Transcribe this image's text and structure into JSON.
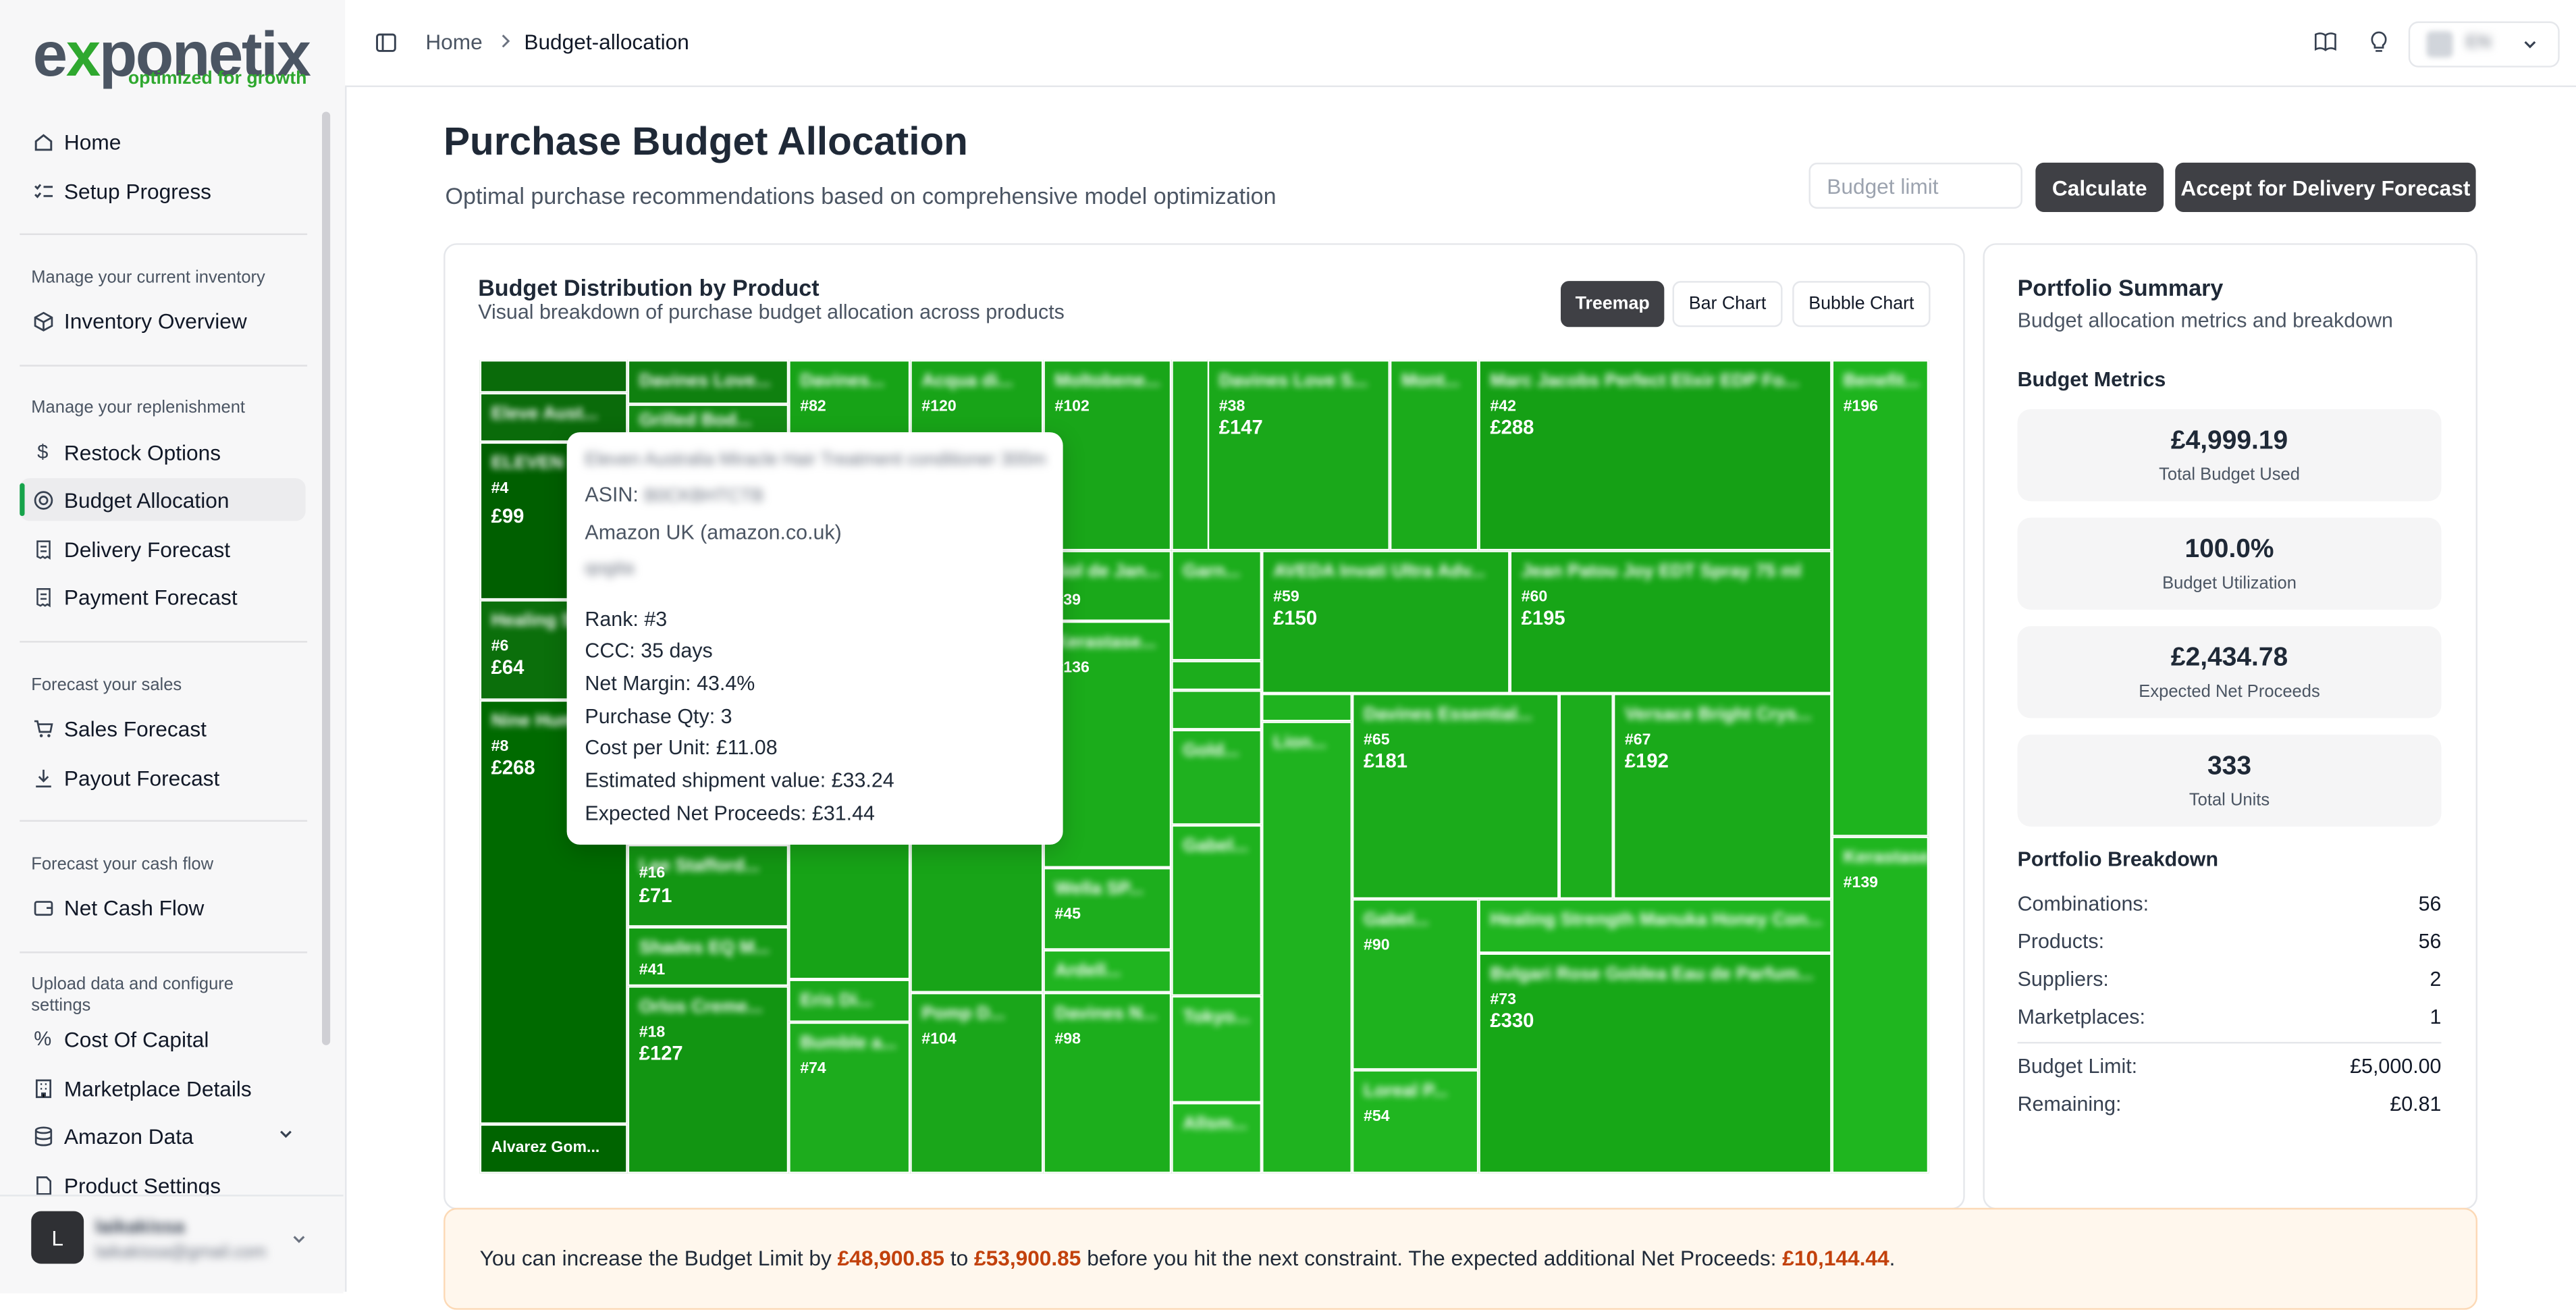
{
  "brand": {
    "logo_text_a": "e",
    "logo_text_x": "x",
    "logo_text_b": "ponetix",
    "tagline": "optimized for growth"
  },
  "sidebar": {
    "items_top": [
      {
        "label": "Home",
        "icon": "home-icon"
      },
      {
        "label": "Setup Progress",
        "icon": "checklist-icon"
      }
    ],
    "sections": [
      {
        "label": "Manage your current inventory",
        "items": [
          {
            "label": "Inventory Overview",
            "icon": "box-icon"
          }
        ]
      },
      {
        "label": "Manage your replenishment",
        "items": [
          {
            "label": "Restock Options",
            "icon": "dollar-icon"
          },
          {
            "label": "Budget Allocation",
            "icon": "target-icon",
            "active": true
          },
          {
            "label": "Delivery Forecast",
            "icon": "receipt-icon"
          },
          {
            "label": "Payment Forecast",
            "icon": "receipt-icon"
          }
        ]
      },
      {
        "label": "Forecast your sales",
        "items": [
          {
            "label": "Sales Forecast",
            "icon": "cart-icon"
          },
          {
            "label": "Payout Forecast",
            "icon": "download-icon"
          }
        ]
      },
      {
        "label": "Forecast your cash flow",
        "items": [
          {
            "label": "Net Cash Flow",
            "icon": "wallet-icon"
          }
        ]
      },
      {
        "label": "Upload data and configure settings",
        "items": [
          {
            "label": "Cost Of Capital",
            "icon": "percent-icon"
          },
          {
            "label": "Marketplace Details",
            "icon": "building-icon"
          },
          {
            "label": "Amazon Data",
            "icon": "database-icon"
          },
          {
            "label": "Product Settings",
            "icon": "document-icon"
          }
        ]
      }
    ],
    "user": {
      "initial": "L",
      "name": "laikakissa",
      "email": "laikakissa@gmail.com"
    }
  },
  "header": {
    "breadcrumb": [
      "Home",
      "Budget-allocation"
    ],
    "lang": "EN"
  },
  "page": {
    "title": "Purchase Budget Allocation",
    "subtitle": "Optimal purchase recommendations based on comprehensive model optimization",
    "budget_placeholder": "Budget limit",
    "calculate_label": "Calculate",
    "accept_label": "Accept for Delivery Forecast"
  },
  "distribution": {
    "title": "Budget Distribution by Product",
    "subtitle": "Visual breakdown of purchase budget allocation across products",
    "tabs": [
      "Treemap",
      "Bar Chart",
      "Bubble Chart"
    ],
    "active_tab": "Treemap"
  },
  "tooltip": {
    "product": "Eleven Australia Miracle Hair Treatment conditioner 300ml",
    "asin_label": "ASIN:",
    "asin": "B0CKBHTCTB",
    "marketplace": "Amazon UK (amazon.co.uk)",
    "supplier": "qogita",
    "rank": "Rank: #3",
    "ccc": "CCC: 35 days",
    "net_margin": "Net Margin: 43.4%",
    "purchase_qty": "Purchase Qty: 3",
    "cost_per_unit": "Cost per Unit: £11.08",
    "shipment_value": "Estimated shipment value: £33.24",
    "expected_net": "Expected Net Proceeds: £31.44"
  },
  "summary": {
    "title": "Portfolio Summary",
    "subtitle": "Budget allocation metrics and breakdown",
    "metrics_heading": "Budget Metrics",
    "metrics": [
      {
        "value": "£4,999.19",
        "label": "Total Budget Used"
      },
      {
        "value": "100.0%",
        "label": "Budget Utilization"
      },
      {
        "value": "£2,434.78",
        "label": "Expected Net Proceeds"
      },
      {
        "value": "333",
        "label": "Total Units"
      }
    ],
    "breakdown_heading": "Portfolio Breakdown",
    "breakdown": [
      {
        "label": "Combinations:",
        "value": "56"
      },
      {
        "label": "Products:",
        "value": "56"
      },
      {
        "label": "Suppliers:",
        "value": "2"
      },
      {
        "label": "Marketplaces:",
        "value": "1"
      }
    ],
    "limits": [
      {
        "label": "Budget Limit:",
        "value": "£5,000.00"
      },
      {
        "label": "Remaining:",
        "value": "£0.81"
      }
    ]
  },
  "banner": {
    "text_a": "You can increase the Budget Limit by ",
    "amount_a": "£48,900.85",
    "text_b": " to ",
    "amount_b": "£53,900.85",
    "text_c": " before you hit the next constraint. The expected additional Net Proceeds: ",
    "amount_c": "£10,144.44",
    "text_d": "."
  },
  "treemap_tiles": [
    {
      "name": "Alvarez Gom...",
      "clear": true,
      "rank": "",
      "value": "",
      "color": "#006400"
    },
    {
      "name": "Eleve Aust...",
      "rank": "",
      "value": "",
      "color": "#0a6b0a"
    },
    {
      "name": "ELEVEN",
      "rank": "#4",
      "value": "£99",
      "color": "#005f00"
    },
    {
      "name": "Healing Sh...",
      "rank": "#6",
      "value": "£64",
      "color": "#0b6f0b"
    },
    {
      "name": "Nine Hum...",
      "rank": "#8",
      "value": "£268",
      "color": "#006a00"
    },
    {
      "name": "Davines Love...",
      "rank": "",
      "value": "",
      "color": "#0f800f"
    },
    {
      "name": "Grilled Bod...",
      "rank": "",
      "value": "",
      "color": "#138a13"
    },
    {
      "name": "Davines...",
      "rank": "#82",
      "value": "",
      "color": "#17a317"
    },
    {
      "name": "Acqua di...",
      "rank": "#120",
      "value": "",
      "color": "#18a418"
    },
    {
      "name": "Moltobene...",
      "rank": "#102",
      "value": "",
      "color": "#19a619"
    },
    {
      "name": "Davines Love S...",
      "rank": "#38",
      "value": "£147",
      "color": "#1aa81a"
    },
    {
      "name": "Mont...",
      "rank": "",
      "value": "",
      "color": "#1bab1b"
    },
    {
      "name": "Marc Jacobs Perfect Elixir EDP Fo...",
      "rank": "#42",
      "value": "£288",
      "color": "#15a015"
    },
    {
      "name": "Benefit...",
      "rank": "#196",
      "value": "",
      "color": "#1eb41e"
    },
    {
      "name": "Sol de Jan...",
      "rank": "#39",
      "value": "",
      "color": "#1aa91a"
    },
    {
      "name": "Garn...",
      "rank": "",
      "value": "",
      "color": "#1cad1c"
    },
    {
      "name": "AVEDA Invati Ultra Adv...",
      "rank": "#59",
      "value": "£150",
      "color": "#19a719"
    },
    {
      "name": "Jean Patou Joy EDT Spray 75 ml",
      "rank": "#60",
      "value": "£195",
      "color": "#17a517"
    },
    {
      "name": "Kerastase...",
      "rank": "#136",
      "value": "",
      "color": "#1bac1b"
    },
    {
      "name": "Davines Essential...",
      "rank": "#65",
      "value": "£181",
      "color": "#1bab1b"
    },
    {
      "name": "Versace Bright Crys...",
      "rank": "#67",
      "value": "£192",
      "color": "#1aaa1a"
    },
    {
      "name": "Gold...",
      "rank": "",
      "value": "",
      "color": "#1fb11f"
    },
    {
      "name": "Lion...",
      "rank": "",
      "value": "",
      "color": "#1fb31f"
    },
    {
      "name": "Kerastase...",
      "rank": "#139",
      "value": "",
      "color": "#1fb61f"
    },
    {
      "name": "Lee Stafford...",
      "rank": "#16",
      "value": "£71",
      "color": "#139613"
    },
    {
      "name": "Wella SP...",
      "rank": "#45",
      "value": "",
      "color": "#1dae1d"
    },
    {
      "name": "Ardell...",
      "rank": "",
      "value": "",
      "color": "#20b520"
    },
    {
      "name": "Gabel...",
      "rank": "#90",
      "value": "",
      "color": "#1eb21e"
    },
    {
      "name": "Healing Strength Manuka Honey Con...",
      "rank": "",
      "value": "",
      "color": "#1fb51f"
    },
    {
      "name": "Shades EQ M...",
      "rank": "#41",
      "value": "",
      "color": "#149a14"
    },
    {
      "name": "Orlos Creme...",
      "rank": "#18",
      "value": "£127",
      "color": "#129512"
    },
    {
      "name": "Eris Di...",
      "rank": "",
      "value": "",
      "color": "#1ba91b"
    },
    {
      "name": "Bumble a...",
      "rank": "#74",
      "value": "",
      "color": "#1dac1d"
    },
    {
      "name": "Pomp D...",
      "rank": "#104",
      "value": "",
      "color": "#1aa61a"
    },
    {
      "name": "Davines N...",
      "rank": "#98",
      "value": "",
      "color": "#1cae1c"
    },
    {
      "name": "Tokyo...",
      "rank": "",
      "value": "",
      "color": "#21b621"
    },
    {
      "name": "Bvlgari Rose Goldea Eau de Parfum...",
      "rank": "#73",
      "value": "£330",
      "color": "#17a717"
    },
    {
      "name": "Loreal P...",
      "rank": "#54",
      "value": "",
      "color": "#20b620"
    },
    {
      "name": "Allsm...",
      "rank": "",
      "value": "",
      "color": "#22b822"
    }
  ]
}
